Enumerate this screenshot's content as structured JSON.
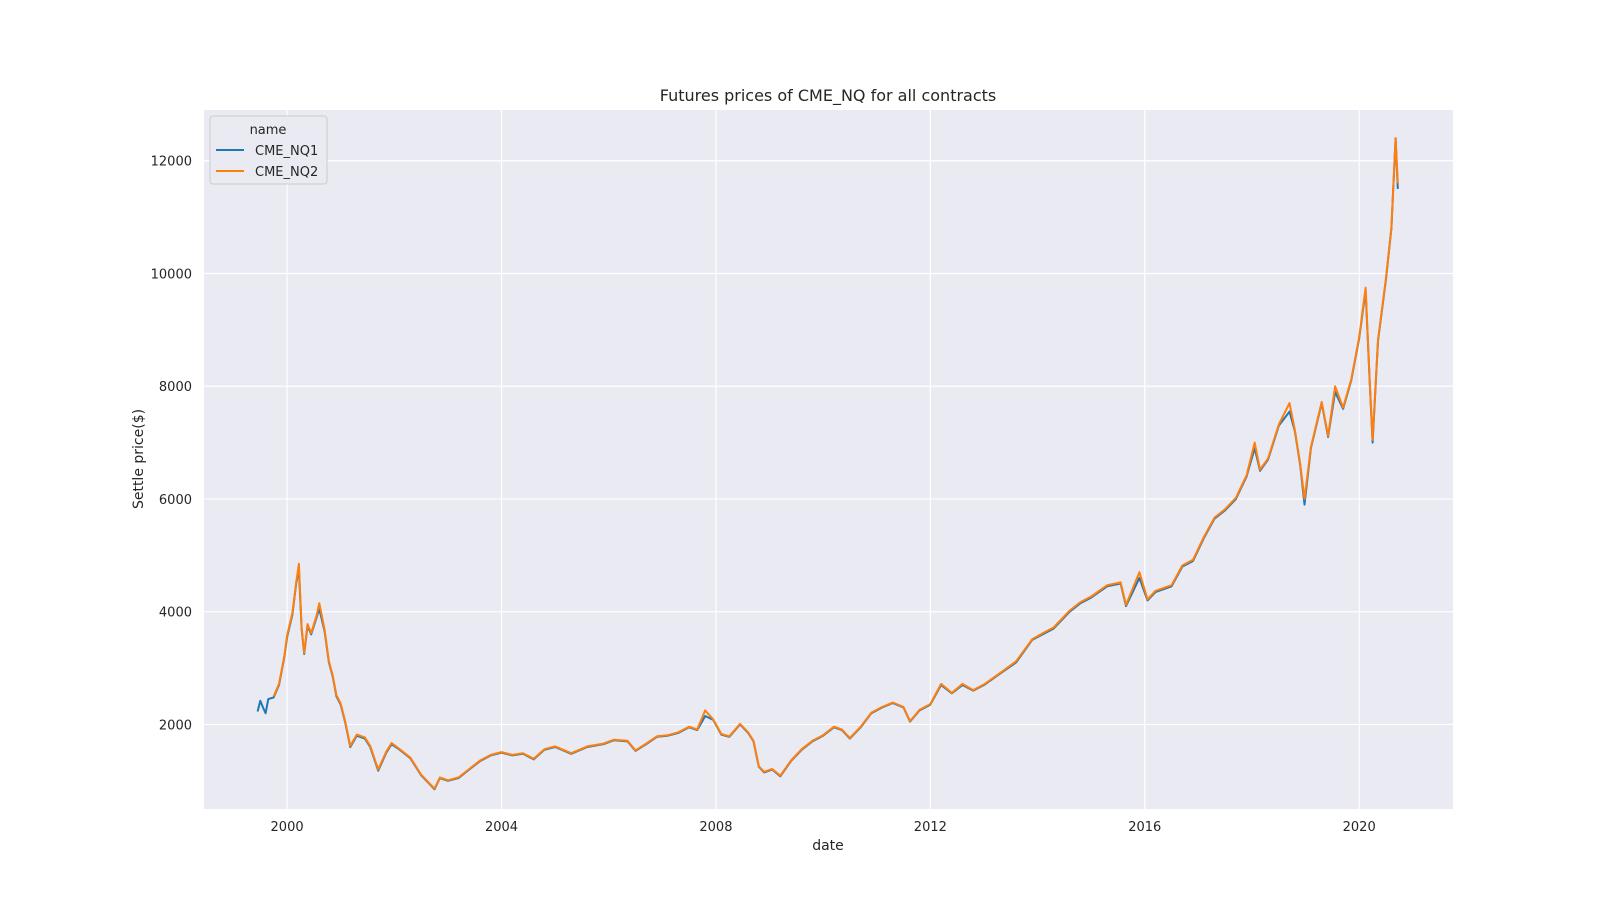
{
  "chart_data": {
    "type": "line",
    "title": "Futures prices of CME_NQ for all contracts",
    "xlabel": "date",
    "ylabel": "Settle price($)",
    "xlim": [
      1998.45,
      2021.75
    ],
    "ylim": [
      500,
      12900
    ],
    "x_ticks": [
      2000,
      2004,
      2008,
      2012,
      2016,
      2020
    ],
    "x_tick_labels": [
      "2000",
      "2004",
      "2008",
      "2012",
      "2016",
      "2020"
    ],
    "y_ticks": [
      2000,
      4000,
      6000,
      8000,
      10000,
      12000
    ],
    "y_tick_labels": [
      "2000",
      "4000",
      "6000",
      "8000",
      "10000",
      "12000"
    ],
    "grid": true,
    "legend": {
      "title": "name",
      "placement": "top-left"
    },
    "series": [
      {
        "name": "CME_NQ1",
        "color": "#1f77b4",
        "points": [
          [
            1999.45,
            2230
          ],
          [
            1999.5,
            2420
          ],
          [
            1999.55,
            2300
          ],
          [
            1999.6,
            2200
          ],
          [
            1999.65,
            2450
          ],
          [
            1999.75,
            2480
          ],
          [
            1999.85,
            2700
          ],
          [
            1999.95,
            3200
          ],
          [
            2000.0,
            3550
          ],
          [
            2000.1,
            3950
          ],
          [
            2000.17,
            4500
          ],
          [
            2000.22,
            4750
          ],
          [
            2000.27,
            3700
          ],
          [
            2000.32,
            3250
          ],
          [
            2000.38,
            3750
          ],
          [
            2000.45,
            3600
          ],
          [
            2000.55,
            3900
          ],
          [
            2000.6,
            4050
          ],
          [
            2000.7,
            3650
          ],
          [
            2000.78,
            3100
          ],
          [
            2000.85,
            2850
          ],
          [
            2000.92,
            2500
          ],
          [
            2001.0,
            2350
          ],
          [
            2001.08,
            2050
          ],
          [
            2001.18,
            1600
          ],
          [
            2001.3,
            1800
          ],
          [
            2001.45,
            1750
          ],
          [
            2001.55,
            1600
          ],
          [
            2001.7,
            1180
          ],
          [
            2001.85,
            1500
          ],
          [
            2001.95,
            1650
          ],
          [
            2002.1,
            1550
          ],
          [
            2002.3,
            1400
          ],
          [
            2002.5,
            1100
          ],
          [
            2002.65,
            950
          ],
          [
            2002.75,
            850
          ],
          [
            2002.85,
            1050
          ],
          [
            2003.0,
            1000
          ],
          [
            2003.2,
            1050
          ],
          [
            2003.4,
            1200
          ],
          [
            2003.6,
            1350
          ],
          [
            2003.8,
            1450
          ],
          [
            2004.0,
            1500
          ],
          [
            2004.2,
            1450
          ],
          [
            2004.4,
            1480
          ],
          [
            2004.6,
            1380
          ],
          [
            2004.8,
            1550
          ],
          [
            2005.0,
            1600
          ],
          [
            2005.3,
            1480
          ],
          [
            2005.6,
            1600
          ],
          [
            2005.9,
            1650
          ],
          [
            2006.1,
            1720
          ],
          [
            2006.35,
            1700
          ],
          [
            2006.5,
            1530
          ],
          [
            2006.7,
            1650
          ],
          [
            2006.9,
            1780
          ],
          [
            2007.1,
            1800
          ],
          [
            2007.3,
            1850
          ],
          [
            2007.5,
            1950
          ],
          [
            2007.65,
            1900
          ],
          [
            2007.8,
            2150
          ],
          [
            2007.95,
            2080
          ],
          [
            2008.1,
            1820
          ],
          [
            2008.25,
            1780
          ],
          [
            2008.45,
            2000
          ],
          [
            2008.6,
            1850
          ],
          [
            2008.7,
            1700
          ],
          [
            2008.8,
            1250
          ],
          [
            2008.9,
            1150
          ],
          [
            2009.05,
            1200
          ],
          [
            2009.2,
            1080
          ],
          [
            2009.4,
            1350
          ],
          [
            2009.6,
            1550
          ],
          [
            2009.8,
            1700
          ],
          [
            2010.0,
            1800
          ],
          [
            2010.2,
            1950
          ],
          [
            2010.35,
            1900
          ],
          [
            2010.5,
            1750
          ],
          [
            2010.7,
            1950
          ],
          [
            2010.9,
            2200
          ],
          [
            2011.1,
            2300
          ],
          [
            2011.3,
            2380
          ],
          [
            2011.5,
            2300
          ],
          [
            2011.62,
            2050
          ],
          [
            2011.8,
            2250
          ],
          [
            2012.0,
            2350
          ],
          [
            2012.2,
            2700
          ],
          [
            2012.4,
            2550
          ],
          [
            2012.6,
            2700
          ],
          [
            2012.8,
            2600
          ],
          [
            2013.0,
            2700
          ],
          [
            2013.3,
            2900
          ],
          [
            2013.6,
            3100
          ],
          [
            2013.9,
            3500
          ],
          [
            2014.1,
            3600
          ],
          [
            2014.3,
            3700
          ],
          [
            2014.6,
            4000
          ],
          [
            2014.8,
            4150
          ],
          [
            2015.0,
            4250
          ],
          [
            2015.3,
            4450
          ],
          [
            2015.55,
            4500
          ],
          [
            2015.65,
            4100
          ],
          [
            2015.9,
            4600
          ],
          [
            2016.05,
            4200
          ],
          [
            2016.2,
            4350
          ],
          [
            2016.5,
            4450
          ],
          [
            2016.7,
            4800
          ],
          [
            2016.9,
            4900
          ],
          [
            2017.1,
            5300
          ],
          [
            2017.3,
            5650
          ],
          [
            2017.5,
            5800
          ],
          [
            2017.7,
            6000
          ],
          [
            2017.9,
            6400
          ],
          [
            2018.05,
            6900
          ],
          [
            2018.15,
            6500
          ],
          [
            2018.3,
            6700
          ],
          [
            2018.5,
            7300
          ],
          [
            2018.7,
            7550
          ],
          [
            2018.8,
            7200
          ],
          [
            2018.9,
            6600
          ],
          [
            2018.98,
            5900
          ],
          [
            2019.1,
            6900
          ],
          [
            2019.3,
            7700
          ],
          [
            2019.42,
            7100
          ],
          [
            2019.55,
            7900
          ],
          [
            2019.7,
            7600
          ],
          [
            2019.85,
            8100
          ],
          [
            2020.0,
            8850
          ],
          [
            2020.12,
            9700
          ],
          [
            2020.2,
            8000
          ],
          [
            2020.25,
            7000
          ],
          [
            2020.35,
            8800
          ],
          [
            2020.5,
            9900
          ],
          [
            2020.6,
            10800
          ],
          [
            2020.68,
            12400
          ],
          [
            2020.72,
            11500
          ]
        ]
      },
      {
        "name": "CME_NQ2",
        "color": "#ff7f0e",
        "points": [
          [
            1999.75,
            2500
          ],
          [
            1999.85,
            2720
          ],
          [
            1999.95,
            3220
          ],
          [
            2000.0,
            3580
          ],
          [
            2000.1,
            3980
          ],
          [
            2000.17,
            4520
          ],
          [
            2000.22,
            4850
          ],
          [
            2000.27,
            3720
          ],
          [
            2000.32,
            3270
          ],
          [
            2000.38,
            3780
          ],
          [
            2000.45,
            3620
          ],
          [
            2000.55,
            3930
          ],
          [
            2000.6,
            4150
          ],
          [
            2000.7,
            3680
          ],
          [
            2000.78,
            3120
          ],
          [
            2000.85,
            2870
          ],
          [
            2000.92,
            2520
          ],
          [
            2001.0,
            2370
          ],
          [
            2001.08,
            2070
          ],
          [
            2001.18,
            1620
          ],
          [
            2001.3,
            1820
          ],
          [
            2001.45,
            1770
          ],
          [
            2001.55,
            1620
          ],
          [
            2001.7,
            1200
          ],
          [
            2001.85,
            1520
          ],
          [
            2001.95,
            1670
          ],
          [
            2002.1,
            1560
          ],
          [
            2002.3,
            1410
          ],
          [
            2002.5,
            1110
          ],
          [
            2002.65,
            960
          ],
          [
            2002.75,
            860
          ],
          [
            2002.85,
            1060
          ],
          [
            2003.0,
            1010
          ],
          [
            2003.2,
            1060
          ],
          [
            2003.4,
            1210
          ],
          [
            2003.6,
            1360
          ],
          [
            2003.8,
            1460
          ],
          [
            2004.0,
            1510
          ],
          [
            2004.2,
            1460
          ],
          [
            2004.4,
            1490
          ],
          [
            2004.6,
            1390
          ],
          [
            2004.8,
            1560
          ],
          [
            2005.0,
            1610
          ],
          [
            2005.3,
            1490
          ],
          [
            2005.6,
            1610
          ],
          [
            2005.9,
            1660
          ],
          [
            2006.1,
            1730
          ],
          [
            2006.35,
            1710
          ],
          [
            2006.5,
            1540
          ],
          [
            2006.7,
            1660
          ],
          [
            2006.9,
            1790
          ],
          [
            2007.1,
            1810
          ],
          [
            2007.3,
            1860
          ],
          [
            2007.5,
            1960
          ],
          [
            2007.65,
            1910
          ],
          [
            2007.8,
            2250
          ],
          [
            2007.95,
            2090
          ],
          [
            2008.1,
            1830
          ],
          [
            2008.25,
            1790
          ],
          [
            2008.45,
            2010
          ],
          [
            2008.6,
            1860
          ],
          [
            2008.7,
            1710
          ],
          [
            2008.8,
            1260
          ],
          [
            2008.9,
            1160
          ],
          [
            2009.05,
            1210
          ],
          [
            2009.2,
            1090
          ],
          [
            2009.4,
            1360
          ],
          [
            2009.6,
            1560
          ],
          [
            2009.8,
            1710
          ],
          [
            2010.0,
            1810
          ],
          [
            2010.2,
            1960
          ],
          [
            2010.35,
            1910
          ],
          [
            2010.5,
            1760
          ],
          [
            2010.7,
            1960
          ],
          [
            2010.9,
            2210
          ],
          [
            2011.1,
            2310
          ],
          [
            2011.3,
            2390
          ],
          [
            2011.5,
            2310
          ],
          [
            2011.62,
            2060
          ],
          [
            2011.8,
            2260
          ],
          [
            2012.0,
            2360
          ],
          [
            2012.2,
            2720
          ],
          [
            2012.4,
            2560
          ],
          [
            2012.6,
            2720
          ],
          [
            2012.8,
            2610
          ],
          [
            2013.0,
            2710
          ],
          [
            2013.3,
            2910
          ],
          [
            2013.6,
            3120
          ],
          [
            2013.9,
            3510
          ],
          [
            2014.1,
            3620
          ],
          [
            2014.3,
            3720
          ],
          [
            2014.6,
            4020
          ],
          [
            2014.8,
            4170
          ],
          [
            2015.0,
            4270
          ],
          [
            2015.3,
            4470
          ],
          [
            2015.55,
            4520
          ],
          [
            2015.65,
            4120
          ],
          [
            2015.9,
            4700
          ],
          [
            2016.05,
            4220
          ],
          [
            2016.2,
            4370
          ],
          [
            2016.5,
            4470
          ],
          [
            2016.7,
            4820
          ],
          [
            2016.9,
            4920
          ],
          [
            2017.1,
            5320
          ],
          [
            2017.3,
            5670
          ],
          [
            2017.5,
            5820
          ],
          [
            2017.7,
            6020
          ],
          [
            2017.9,
            6420
          ],
          [
            2018.05,
            7000
          ],
          [
            2018.15,
            6520
          ],
          [
            2018.3,
            6720
          ],
          [
            2018.5,
            7320
          ],
          [
            2018.7,
            7700
          ],
          [
            2018.8,
            7220
          ],
          [
            2018.9,
            6620
          ],
          [
            2018.98,
            6000
          ],
          [
            2019.1,
            6920
          ],
          [
            2019.3,
            7720
          ],
          [
            2019.42,
            7120
          ],
          [
            2019.55,
            8000
          ],
          [
            2019.7,
            7620
          ],
          [
            2019.85,
            8120
          ],
          [
            2020.0,
            8870
          ],
          [
            2020.12,
            9750
          ],
          [
            2020.2,
            8020
          ],
          [
            2020.25,
            7050
          ],
          [
            2020.35,
            8820
          ],
          [
            2020.5,
            9920
          ],
          [
            2020.6,
            10820
          ],
          [
            2020.68,
            12400
          ],
          [
            2020.72,
            11600
          ]
        ]
      }
    ]
  }
}
